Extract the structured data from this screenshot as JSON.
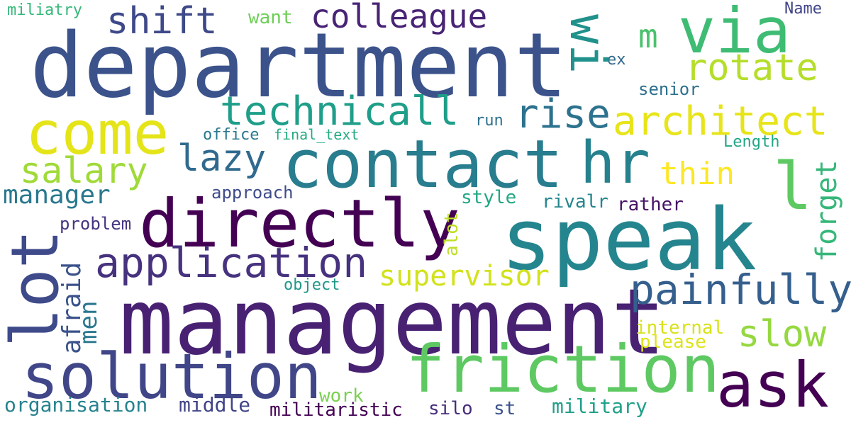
{
  "words": [
    {
      "text": "department",
      "color": "#3b528b"
    },
    {
      "text": "management",
      "color": "#482173"
    },
    {
      "text": "speak",
      "color": "#25858e"
    },
    {
      "text": "directly",
      "color": "#440154"
    },
    {
      "text": "contact",
      "color": "#287d8e"
    },
    {
      "text": "friction",
      "color": "#5ec962"
    },
    {
      "text": "solution",
      "color": "#404688"
    },
    {
      "text": "come",
      "color": "#e4e419"
    },
    {
      "text": "lot",
      "color": "#3e4a89"
    },
    {
      "text": "ask",
      "color": "#440154"
    },
    {
      "text": "via",
      "color": "#3fbc73"
    },
    {
      "text": "hr",
      "color": "#26818e"
    },
    {
      "text": "application",
      "color": "#46327e"
    },
    {
      "text": "painfully",
      "color": "#355f8d"
    },
    {
      "text": "technicall",
      "color": "#1f9e89"
    },
    {
      "text": "rise",
      "color": "#2c728e"
    },
    {
      "text": "architect",
      "color": "#e7e419"
    },
    {
      "text": "wi",
      "color": "#21918c"
    },
    {
      "text": "l",
      "color": "#5ec962"
    },
    {
      "text": "shift",
      "color": "#3e4989"
    },
    {
      "text": "colleague",
      "color": "#482475"
    },
    {
      "text": "rotate",
      "color": "#b5de2b"
    },
    {
      "text": "m",
      "color": "#4ac16d"
    },
    {
      "text": "salary",
      "color": "#a0da39"
    },
    {
      "text": "lazy",
      "color": "#306a8e"
    },
    {
      "text": "thin",
      "color": "#fde725"
    },
    {
      "text": "forget",
      "color": "#35b779"
    },
    {
      "text": "manager",
      "color": "#2a788e"
    },
    {
      "text": "supervisor",
      "color": "#d2e21b"
    },
    {
      "text": "slow",
      "color": "#95d840"
    },
    {
      "text": "afraid",
      "color": "#3b528b"
    },
    {
      "text": "men",
      "color": "#2a788e"
    },
    {
      "text": "alot",
      "color": "#bddf26"
    },
    {
      "text": "internal",
      "color": "#d8e219"
    },
    {
      "text": "please",
      "color": "#dfe318"
    },
    {
      "text": "work",
      "color": "#7ad151"
    },
    {
      "text": "organisation",
      "color": "#26828e"
    },
    {
      "text": "middle",
      "color": "#414487"
    },
    {
      "text": "militaristic",
      "color": "#440154"
    },
    {
      "text": "silo",
      "color": "#472d7b"
    },
    {
      "text": "st",
      "color": "#3b528b"
    },
    {
      "text": "military",
      "color": "#1fa088"
    },
    {
      "text": "miliatry",
      "color": "#35b779"
    },
    {
      "text": "want",
      "color": "#6ece58"
    },
    {
      "text": "Name",
      "color": "#414487"
    },
    {
      "text": "ex",
      "color": "#31688e"
    },
    {
      "text": "senior",
      "color": "#2d708e"
    },
    {
      "text": "run",
      "color": "#2d718e"
    },
    {
      "text": "office",
      "color": "#2a788e"
    },
    {
      "text": "final_text",
      "color": "#25ab82"
    },
    {
      "text": "Length",
      "color": "#21a685"
    },
    {
      "text": "approach",
      "color": "#3e4c8a"
    },
    {
      "text": "style",
      "color": "#22a785"
    },
    {
      "text": "rivalr",
      "color": "#24868e"
    },
    {
      "text": "rather",
      "color": "#471164"
    },
    {
      "text": "problem",
      "color": "#453581"
    },
    {
      "text": "object",
      "color": "#1f998a"
    }
  ]
}
